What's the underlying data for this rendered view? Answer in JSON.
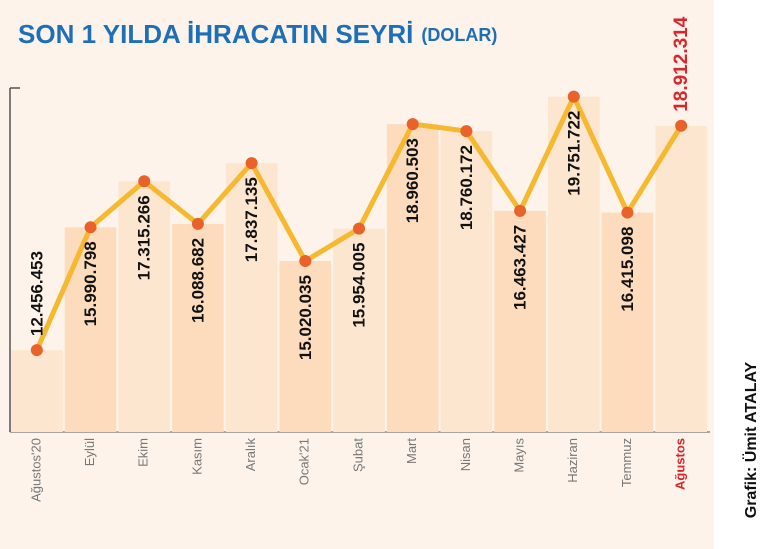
{
  "chart_data": {
    "type": "line",
    "title": "SON 1 YILDA İHRACATIN SEYRİ",
    "subtitle": "(DOLAR)",
    "credit": "Grafik: Ümit ATALAY",
    "categories": [
      "Ağustos'20",
      "Eylül",
      "Ekim",
      "Kasım",
      "Aralık",
      "Ocak'21",
      "Şubat",
      "Mart",
      "Nisan",
      "Mayıs",
      "Haziran",
      "Temmuz",
      "Ağustos"
    ],
    "values": [
      12456453,
      15990798,
      17315266,
      16088682,
      17837135,
      15020035,
      15954005,
      18960503,
      18760172,
      16463427,
      19751722,
      16415098,
      18912314
    ],
    "value_labels": [
      "12.456.453",
      "15.990.798",
      "17.315.266",
      "16.088.682",
      "17.837.135",
      "15.020.035",
      "15.954.005",
      "18.960.503",
      "18.760.172",
      "16.463.427",
      "19.751.722",
      "16.415.098",
      "18.912.314"
    ],
    "ylim": [
      10100000,
      20000000
    ],
    "color": "#f5b82e",
    "marker_color": "#e8622a",
    "highlight_color": "#d9252b"
  }
}
